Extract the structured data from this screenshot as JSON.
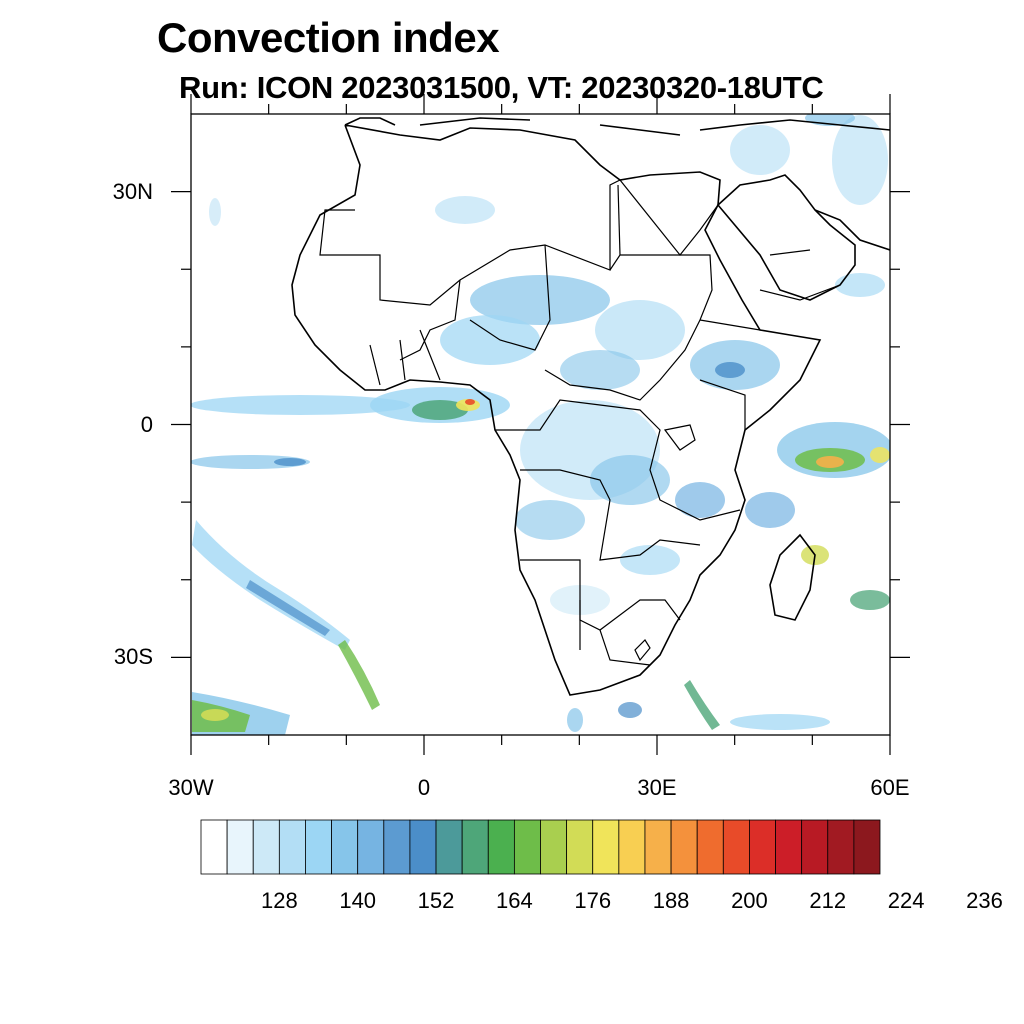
{
  "title": "Convection index",
  "subtitle": "Run: ICON 2023031500,  VT: 20230320-18UTC",
  "map": {
    "projection": "cylindrical-equidistant",
    "lon_range": [
      -30,
      60
    ],
    "lat_range": [
      -40,
      40
    ],
    "lat_ticks": [
      {
        "value": 30,
        "label": "30N"
      },
      {
        "value": 0,
        "label": "0"
      },
      {
        "value": -30,
        "label": "30S"
      }
    ],
    "lon_ticks": [
      {
        "value": -30,
        "label": "30W"
      },
      {
        "value": 0,
        "label": "0"
      },
      {
        "value": 30,
        "label": "30E"
      },
      {
        "value": 60,
        "label": "60E"
      }
    ]
  },
  "colorbar": {
    "colors": [
      "#ffffff",
      "#e8f5fc",
      "#cde9f7",
      "#b3def5",
      "#9cd6f4",
      "#86c5ea",
      "#76b4e2",
      "#5c9bd1",
      "#4b8ec9",
      "#4c9a9a",
      "#4ea679",
      "#4bb04f",
      "#6ebd49",
      "#a9cf4f",
      "#d2dc56",
      "#f0e45a",
      "#f8cf52",
      "#f6b04a",
      "#f4913c",
      "#ef6c2e",
      "#e84b29",
      "#dc2e28",
      "#cc1e28",
      "#b81a24",
      "#a11a22",
      "#8c181e"
    ],
    "tick_labels": [
      "128",
      "140",
      "152",
      "164",
      "176",
      "188",
      "200",
      "212",
      "224",
      "236"
    ]
  }
}
